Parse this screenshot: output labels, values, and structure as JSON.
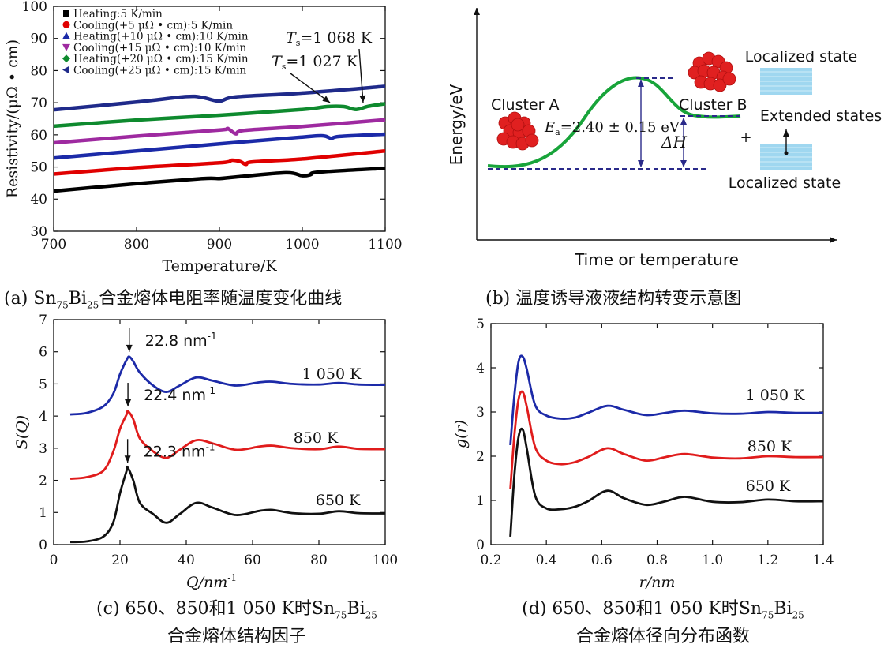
{
  "chart_data": [
    {
      "id": "a",
      "type": "line",
      "xlabel": "Temperature/K",
      "ylabel": "Resistivity/(μΩ • cm)",
      "xlim": [
        700,
        1100
      ],
      "ylim": [
        30,
        100
      ],
      "xticks": [
        700,
        800,
        900,
        1000,
        1100
      ],
      "yticks": [
        30,
        40,
        50,
        60,
        70,
        80,
        90,
        100
      ],
      "legend": "top-left",
      "series": [
        {
          "name": "Heating:5 K/min",
          "color": "#000000",
          "marker": "square",
          "x": [
            700,
            800,
            880,
            900,
            920,
            980,
            1000,
            1010,
            1020,
            1100
          ],
          "y": [
            42.5,
            44.8,
            46.4,
            46.4,
            46.9,
            48.2,
            47.3,
            47.6,
            48.4,
            49.6
          ]
        },
        {
          "name": "Cooling(+5 μΩ • cm):5 K/min",
          "color": "#e00000",
          "marker": "circle",
          "x": [
            700,
            800,
            900,
            915,
            925,
            932,
            940,
            1000,
            1100
          ],
          "y": [
            47.8,
            49.8,
            51.3,
            52.1,
            51.7,
            50.8,
            51.6,
            52.5,
            55.0
          ]
        },
        {
          "name": "Heating(+10 μΩ • cm):10 K/min",
          "color": "#1b2aa8",
          "marker": "triangle-up",
          "x": [
            700,
            800,
            900,
            1000,
            1025,
            1035,
            1045,
            1100
          ],
          "y": [
            52.8,
            55.0,
            57.2,
            59.3,
            59.7,
            58.9,
            59.5,
            60.2
          ]
        },
        {
          "name": "Cooling(+15 μΩ • cm):10 K/min",
          "color": "#9e2aa0",
          "marker": "triangle-down",
          "x": [
            700,
            800,
            900,
            910,
            920,
            930,
            1000,
            1100
          ],
          "y": [
            57.5,
            59.6,
            61.5,
            61.9,
            60.3,
            61.4,
            62.6,
            64.7
          ]
        },
        {
          "name": "Heating(+20 μΩ • cm):15 K/min",
          "color": "#0e8a2e",
          "marker": "diamond",
          "x": [
            700,
            800,
            900,
            1000,
            1030,
            1050,
            1065,
            1080,
            1100
          ],
          "y": [
            62.7,
            64.6,
            66.1,
            67.9,
            68.8,
            68.8,
            67.9,
            68.9,
            69.7
          ]
        },
        {
          "name": "Cooling(+25 μΩ • cm):15 K/min",
          "color": "#1f2a8a",
          "marker": "triangle-left",
          "x": [
            700,
            800,
            860,
            880,
            900,
            920,
            1000,
            1100
          ],
          "y": [
            67.8,
            70.2,
            71.9,
            71.6,
            70.5,
            71.8,
            73.0,
            75.1
          ]
        }
      ],
      "annotations": [
        {
          "sym": "T",
          "sub": "s",
          "text": "=1 068 K"
        },
        {
          "sym": "T",
          "sub": "s",
          "text": "=1 027 K"
        }
      ]
    },
    {
      "id": "b",
      "type": "line",
      "xlabel": "Time or temperature",
      "ylabel": "Energy/eV",
      "labels": {
        "cluster_a": "Cluster A",
        "cluster_b": "Cluster B",
        "ea_sym": "E",
        "ea_sub": "a",
        "ea_text": "=2.40 ± 0.15 eV",
        "dh": "ΔH",
        "localized_top": "Localized state",
        "extended": "Extended states",
        "localized_bottom": "Localized state",
        "plus": "+"
      },
      "curve_color": "#18a43a",
      "guide_color": "#2a2a8a",
      "cluster_color": "#e02020",
      "band_color": "#9fd7f0"
    },
    {
      "id": "c",
      "type": "line",
      "xlabel": "Q/nm",
      "xlabel_sup": "-1",
      "ylabel": "S(Q)",
      "xlim": [
        0,
        100
      ],
      "ylim": [
        0,
        7
      ],
      "xticks": [
        0,
        20,
        40,
        60,
        80,
        100
      ],
      "yticks": [
        0,
        1,
        2,
        3,
        4,
        5,
        6,
        7
      ],
      "series": [
        {
          "name": "1 050 K",
          "color": "#1c2aa8",
          "peak": "22.8 nm",
          "peak_sup": "-1",
          "peak_x": 22.8,
          "peak_y": 5.85,
          "x": [
            5,
            10,
            15,
            18,
            20,
            22,
            22.8,
            24,
            26,
            30,
            34,
            38,
            43,
            48,
            55,
            62,
            66,
            72,
            80,
            86,
            92,
            100
          ],
          "y": [
            4.05,
            4.1,
            4.3,
            4.7,
            5.3,
            5.75,
            5.85,
            5.7,
            5.35,
            4.95,
            4.75,
            4.95,
            5.2,
            5.1,
            4.95,
            5.05,
            5.07,
            5.0,
            4.98,
            5.03,
            4.98,
            4.97
          ]
        },
        {
          "name": "850 K",
          "color": "#e01c1c",
          "peak": "22.4 nm",
          "peak_sup": "-1",
          "peak_x": 22.4,
          "peak_y": 4.15,
          "x": [
            5,
            10,
            15,
            18,
            20,
            22,
            22.4,
            24,
            26,
            30,
            34,
            38,
            43,
            48,
            55,
            62,
            66,
            72,
            80,
            86,
            92,
            100
          ],
          "y": [
            2.05,
            2.1,
            2.3,
            2.9,
            3.6,
            4.05,
            4.15,
            3.9,
            3.3,
            2.9,
            2.7,
            2.95,
            3.25,
            3.15,
            2.95,
            3.05,
            3.08,
            3.0,
            2.97,
            3.05,
            2.98,
            2.97
          ]
        },
        {
          "name": "650 K",
          "color": "#111111",
          "peak": "22.3 nm",
          "peak_sup": "-1",
          "peak_x": 22.3,
          "peak_y": 2.4,
          "x": [
            5,
            10,
            15,
            18,
            20,
            22,
            22.3,
            24,
            26,
            30,
            34,
            38,
            43,
            48,
            55,
            62,
            66,
            72,
            80,
            86,
            92,
            100
          ],
          "y": [
            0.08,
            0.1,
            0.25,
            0.7,
            1.6,
            2.3,
            2.4,
            2.0,
            1.3,
            0.95,
            0.68,
            0.95,
            1.3,
            1.15,
            0.92,
            1.05,
            1.08,
            0.98,
            0.96,
            1.04,
            0.98,
            0.97
          ]
        }
      ]
    },
    {
      "id": "d",
      "type": "line",
      "xlabel": "r/nm",
      "ylabel": "g(r)",
      "xlim": [
        0.2,
        1.4
      ],
      "ylim": [
        0,
        5
      ],
      "xticks": [
        0.2,
        0.4,
        0.6,
        0.8,
        1.0,
        1.2,
        1.4
      ],
      "xtick_labels": [
        "0.2",
        "0.4",
        "0.6",
        "0.8",
        "1.0",
        "1.2",
        "1.4"
      ],
      "yticks": [
        0,
        1,
        2,
        3,
        4,
        5
      ],
      "series": [
        {
          "name": "1 050 K",
          "color": "#1c2aa8",
          "x": [
            0.27,
            0.285,
            0.3,
            0.315,
            0.33,
            0.36,
            0.4,
            0.45,
            0.5,
            0.55,
            0.62,
            0.68,
            0.76,
            0.83,
            0.9,
            1.0,
            1.1,
            1.2,
            1.3,
            1.4
          ],
          "y": [
            2.25,
            3.4,
            4.15,
            4.25,
            3.95,
            3.15,
            2.92,
            2.85,
            2.87,
            2.98,
            3.14,
            3.05,
            2.93,
            2.98,
            3.03,
            2.97,
            2.96,
            3.0,
            2.98,
            2.98
          ]
        },
        {
          "name": "850 K",
          "color": "#e01c1c",
          "x": [
            0.27,
            0.285,
            0.3,
            0.315,
            0.33,
            0.36,
            0.4,
            0.45,
            0.5,
            0.55,
            0.62,
            0.68,
            0.76,
            0.83,
            0.9,
            1.0,
            1.1,
            1.2,
            1.3,
            1.4
          ],
          "y": [
            1.25,
            2.5,
            3.3,
            3.45,
            3.1,
            2.2,
            1.9,
            1.82,
            1.86,
            1.98,
            2.18,
            2.05,
            1.9,
            1.98,
            2.05,
            1.97,
            1.95,
            2.0,
            1.98,
            1.98
          ]
        },
        {
          "name": "650 K",
          "color": "#111111",
          "x": [
            0.27,
            0.285,
            0.3,
            0.315,
            0.33,
            0.36,
            0.4,
            0.45,
            0.5,
            0.55,
            0.62,
            0.68,
            0.76,
            0.83,
            0.9,
            1.0,
            1.1,
            1.2,
            1.3,
            1.4
          ],
          "y": [
            0.18,
            1.6,
            2.45,
            2.6,
            2.15,
            1.1,
            0.82,
            0.8,
            0.85,
            0.98,
            1.22,
            1.05,
            0.9,
            0.98,
            1.08,
            0.97,
            0.96,
            1.02,
            0.98,
            0.98
          ]
        }
      ]
    }
  ],
  "captions": {
    "a_pre": "(a) Sn",
    "a_sub1": "75",
    "a_mid": "Bi",
    "a_sub2": "25",
    "a_post": "合金熔体电阻率随温度变化曲线",
    "b": "(b) 温度诱导液液结构转变示意图",
    "c_line1_pre": "(c) 650、850和1 050 K时Sn",
    "c_sub1": "75",
    "c_mid": "Bi",
    "c_sub2": "25",
    "c_line2": "合金熔体结构因子",
    "d_line1_pre": "(d) 650、850和1 050 K时Sn",
    "d_sub1": "75",
    "d_mid": "Bi",
    "d_sub2": "25",
    "d_line2": "合金熔体径向分布函数"
  }
}
